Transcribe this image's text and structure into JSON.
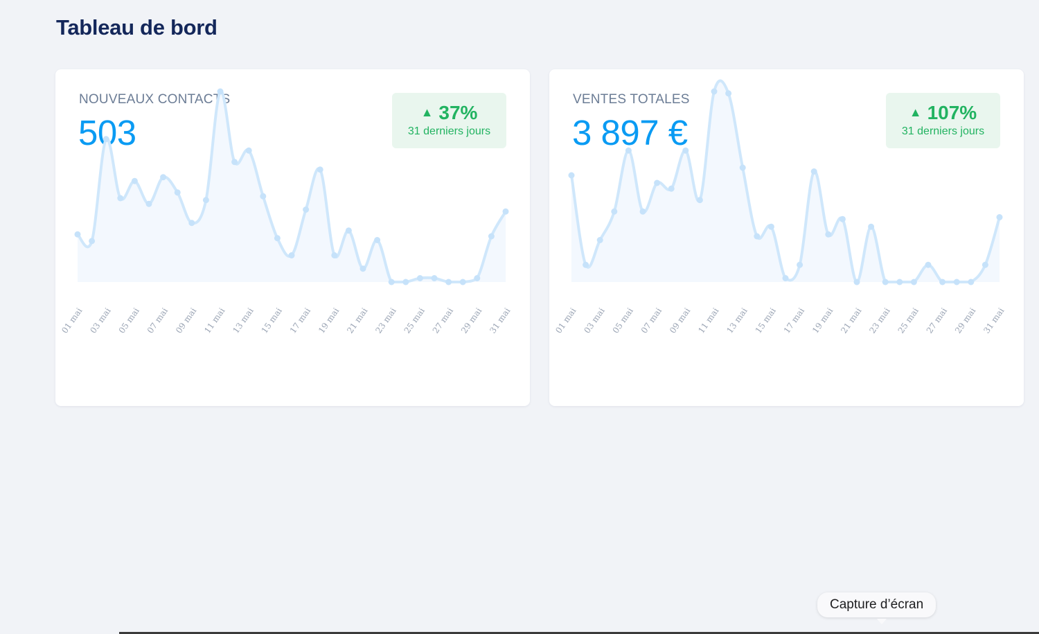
{
  "page": {
    "title": "Tableau de bord"
  },
  "cards": [
    {
      "label": "NOUVEAUX CONTACTS",
      "value": "503",
      "badge": {
        "percent": "37%",
        "period": "31 derniers jours"
      },
      "chart_data": {
        "type": "area",
        "x": [
          "01 mai",
          "02 mai",
          "03 mai",
          "04 mai",
          "05 mai",
          "06 mai",
          "07 mai",
          "08 mai",
          "09 mai",
          "10 mai",
          "11 mai",
          "12 mai",
          "13 mai",
          "14 mai",
          "15 mai",
          "16 mai",
          "17 mai",
          "18 mai",
          "19 mai",
          "20 mai",
          "21 mai",
          "22 mai",
          "23 mai",
          "24 mai",
          "25 mai",
          "26 mai",
          "27 mai",
          "28 mai",
          "29 mai",
          "30 mai",
          "31 mai"
        ],
        "tick_labels": [
          "01 mai",
          "03 mai",
          "05 mai",
          "07 mai",
          "09 mai",
          "11 mai",
          "13 mai",
          "15 mai",
          "17 mai",
          "19 mai",
          "21 mai",
          "23 mai",
          "25 mai",
          "27 mai",
          "29 mai",
          "31 mai"
        ],
        "values": [
          25,
          21.5,
          75,
          44,
          53,
          41,
          55,
          47,
          31,
          43,
          100,
          63,
          69,
          45,
          23,
          14,
          38,
          59,
          14,
          27,
          7,
          22,
          0,
          0,
          2,
          2,
          0,
          0,
          2,
          24,
          37
        ],
        "ylim": [
          0,
          100
        ],
        "color": "#cfe7fb"
      }
    },
    {
      "label": "VENTES TOTALES",
      "value": "3 897 €",
      "badge": {
        "percent": "107%",
        "period": "31 derniers jours"
      },
      "chart_data": {
        "type": "area",
        "x": [
          "01 mai",
          "02 mai",
          "03 mai",
          "04 mai",
          "05 mai",
          "06 mai",
          "07 mai",
          "08 mai",
          "09 mai",
          "10 mai",
          "11 mai",
          "12 mai",
          "13 mai",
          "14 mai",
          "15 mai",
          "16 mai",
          "17 mai",
          "18 mai",
          "19 mai",
          "20 mai",
          "21 mai",
          "22 mai",
          "23 mai",
          "24 mai",
          "25 mai",
          "26 mai",
          "27 mai",
          "28 mai",
          "29 mai",
          "30 mai",
          "31 mai"
        ],
        "tick_labels": [
          "01 mai",
          "03 mai",
          "05 mai",
          "07 mai",
          "09 mai",
          "11 mai",
          "13 mai",
          "15 mai",
          "17 mai",
          "19 mai",
          "21 mai",
          "23 mai",
          "25 mai",
          "27 mai",
          "29 mai",
          "31 mai"
        ],
        "values": [
          56,
          9,
          22,
          37,
          69,
          37,
          52,
          49,
          69,
          43,
          100,
          99,
          60,
          24,
          29,
          2,
          9,
          58,
          25,
          33,
          0,
          29,
          0,
          0,
          0,
          9,
          0,
          0,
          0,
          9,
          34
        ],
        "ylim": [
          0,
          100
        ],
        "color": "#cfe7fb"
      }
    }
  ],
  "tooltip": {
    "text": "Capture d’écran"
  },
  "colors": {
    "accent": "#0a9bf3",
    "positive": "#22b361",
    "title": "#14275a"
  },
  "icons": {
    "trend": "triangle-up-icon"
  }
}
